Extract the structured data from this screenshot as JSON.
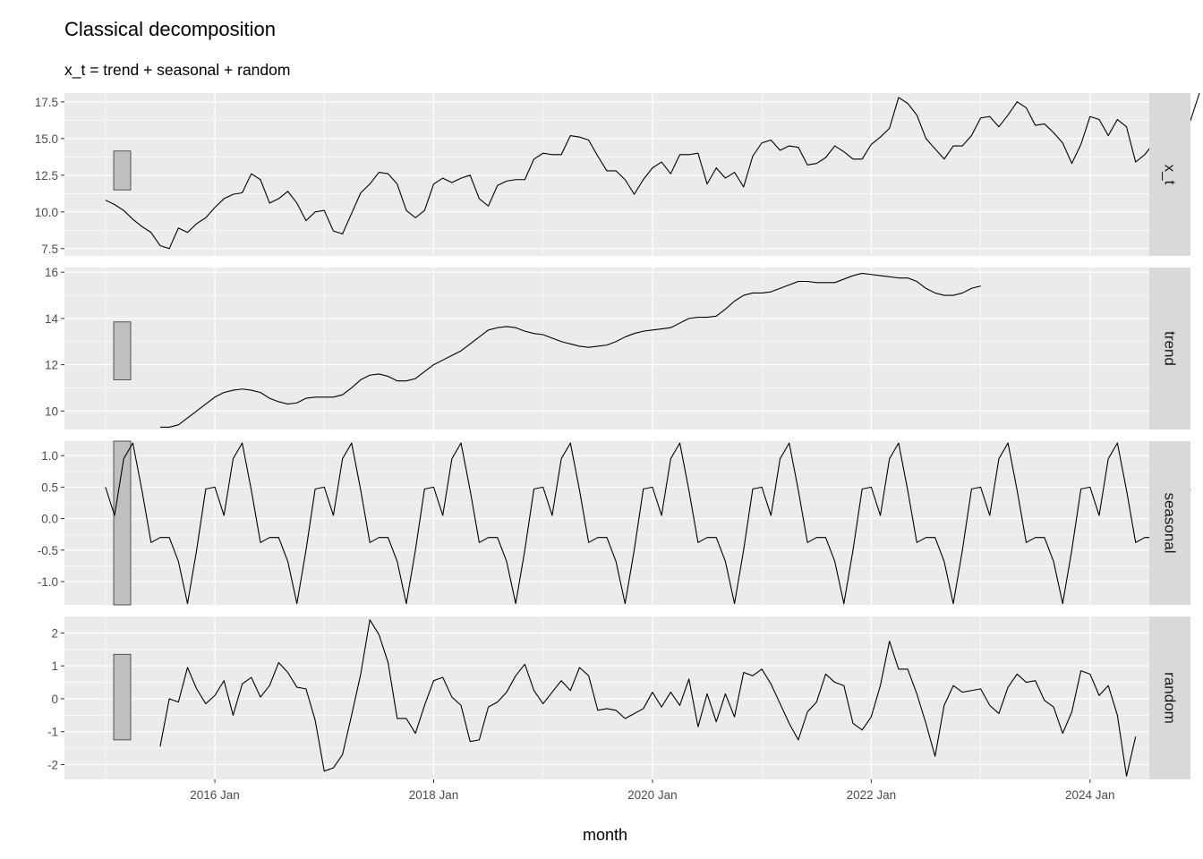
{
  "chart_data": {
    "type": "line",
    "title": "Classical decomposition",
    "subtitle": "x_t = trend + seasonal + random",
    "xlabel": "month",
    "x_start": "2015 Jan",
    "x_end": "2024 Dec",
    "x_ticks": [
      {
        "month_index": 12,
        "label": "2016 Jan"
      },
      {
        "month_index": 36,
        "label": "2018 Jan"
      },
      {
        "month_index": 60,
        "label": "2020 Jan"
      },
      {
        "month_index": 84,
        "label": "2022 Jan"
      },
      {
        "month_index": 108,
        "label": "2024 Jan"
      }
    ],
    "range_bar_color": "#bfbfbf",
    "line_color": "#000000",
    "panels": [
      {
        "name": "x_t",
        "ylim": [
          7.0,
          18.1
        ],
        "y_ticks": [
          7.5,
          10.0,
          12.5,
          15.0,
          17.5
        ],
        "y_tick_labels": [
          "7.5",
          "10.0",
          "12.5",
          "15.0",
          "17.5"
        ],
        "range_bar": [
          11.5,
          14.15
        ],
        "start_index": 0,
        "values": [
          10.8,
          10.5,
          10.1,
          9.5,
          9.0,
          8.6,
          7.7,
          7.5,
          8.9,
          8.6,
          9.2,
          9.6,
          10.3,
          10.9,
          11.2,
          11.3,
          12.6,
          12.2,
          10.6,
          10.9,
          11.4,
          10.6,
          9.4,
          10.0,
          10.1,
          8.7,
          8.5,
          9.9,
          11.3,
          11.9,
          12.7,
          12.6,
          11.9,
          10.1,
          9.6,
          10.1,
          11.9,
          12.3,
          12.0,
          12.3,
          12.5,
          10.9,
          10.4,
          11.8,
          12.1,
          12.2,
          12.2,
          13.6,
          14.0,
          13.9,
          13.9,
          15.2,
          15.1,
          14.9,
          13.8,
          12.8,
          12.8,
          12.2,
          11.2,
          12.2,
          13.0,
          13.4,
          12.6,
          13.9,
          13.9,
          14.0,
          11.9,
          13.0,
          12.3,
          12.7,
          11.7,
          13.8,
          14.7,
          14.9,
          14.2,
          14.5,
          14.4,
          13.2,
          13.3,
          13.7,
          14.5,
          14.1,
          13.6,
          13.6,
          14.6,
          15.1,
          15.7,
          17.8,
          17.4,
          16.6,
          15.0,
          14.3,
          13.6,
          14.5,
          14.5,
          15.2,
          16.4,
          16.5,
          15.8,
          16.6,
          17.5,
          17.1,
          15.9,
          16.0,
          15.4,
          14.7,
          13.3,
          14.6,
          16.5,
          16.3,
          15.2,
          16.3,
          15.8,
          13.4,
          13.9,
          14.7,
          14.9,
          15.2,
          15.8,
          16.2,
          18.1
        ]
      },
      {
        "name": "trend",
        "ylim": [
          9.2,
          16.2
        ],
        "y_ticks": [
          10,
          12,
          14,
          16
        ],
        "y_tick_labels": [
          "10",
          "12",
          "14",
          "16"
        ],
        "range_bar": [
          11.35,
          13.85
        ],
        "start_index": 6,
        "values": [
          9.3,
          9.3,
          9.4,
          9.7,
          10.0,
          10.3,
          10.6,
          10.8,
          10.9,
          10.95,
          10.9,
          10.8,
          10.55,
          10.4,
          10.3,
          10.35,
          10.55,
          10.6,
          10.6,
          10.6,
          10.7,
          11.0,
          11.35,
          11.55,
          11.6,
          11.5,
          11.3,
          11.3,
          11.4,
          11.7,
          12.0,
          12.2,
          12.4,
          12.6,
          12.9,
          13.2,
          13.5,
          13.6,
          13.65,
          13.6,
          13.45,
          13.35,
          13.3,
          13.15,
          13.0,
          12.9,
          12.8,
          12.75,
          12.8,
          12.85,
          13.0,
          13.2,
          13.35,
          13.45,
          13.5,
          13.55,
          13.6,
          13.8,
          14.0,
          14.05,
          14.05,
          14.1,
          14.4,
          14.75,
          15.0,
          15.1,
          15.1,
          15.15,
          15.3,
          15.45,
          15.6,
          15.6,
          15.55,
          15.55,
          15.55,
          15.7,
          15.85,
          15.95,
          15.9,
          15.85,
          15.8,
          15.75,
          15.75,
          15.6,
          15.3,
          15.1,
          15.0,
          15.0,
          15.1,
          15.3,
          15.4
        ]
      },
      {
        "name": "seasonal",
        "ylim": [
          -1.37,
          1.23
        ],
        "y_ticks": [
          -1.0,
          -0.5,
          0.0,
          0.5,
          1.0
        ],
        "y_tick_labels": [
          "-1.0",
          "-0.5",
          "0.0",
          "0.5",
          "1.0"
        ],
        "range_bar": [
          -1.37,
          1.23
        ],
        "start_index": 0,
        "values": [
          0.5,
          0.05,
          0.95,
          1.2,
          0.45,
          -0.38,
          -0.3,
          -0.3,
          -0.68,
          -1.35,
          -0.5,
          0.47,
          0.5,
          0.05,
          0.95,
          1.2,
          0.45,
          -0.38,
          -0.3,
          -0.3,
          -0.68,
          -1.35,
          -0.5,
          0.47,
          0.5,
          0.05,
          0.95,
          1.2,
          0.45,
          -0.38,
          -0.3,
          -0.3,
          -0.68,
          -1.35,
          -0.5,
          0.47,
          0.5,
          0.05,
          0.95,
          1.2,
          0.45,
          -0.38,
          -0.3,
          -0.3,
          -0.68,
          -1.35,
          -0.5,
          0.47,
          0.5,
          0.05,
          0.95,
          1.2,
          0.45,
          -0.38,
          -0.3,
          -0.3,
          -0.68,
          -1.35,
          -0.5,
          0.47,
          0.5,
          0.05,
          0.95,
          1.2,
          0.45,
          -0.38,
          -0.3,
          -0.3,
          -0.68,
          -1.35,
          -0.5,
          0.47,
          0.5,
          0.05,
          0.95,
          1.2,
          0.45,
          -0.38,
          -0.3,
          -0.3,
          -0.68,
          -1.35,
          -0.5,
          0.47,
          0.5,
          0.05,
          0.95,
          1.2,
          0.45,
          -0.38,
          -0.3,
          -0.3,
          -0.68,
          -1.35,
          -0.5,
          0.47,
          0.5,
          0.05,
          0.95,
          1.2,
          0.45,
          -0.38,
          -0.3,
          -0.3,
          -0.68,
          -1.35,
          -0.5,
          0.47,
          0.5,
          0.05,
          0.95,
          1.2,
          0.45,
          -0.38,
          -0.3,
          -0.3,
          -0.68,
          -1.35,
          -0.5,
          0.47
        ]
      },
      {
        "name": "random",
        "ylim": [
          -2.45,
          2.5
        ],
        "y_ticks": [
          -2,
          -1,
          0,
          1,
          2
        ],
        "y_tick_labels": [
          "-2",
          "-1",
          "0",
          "1",
          "2"
        ],
        "range_bar": [
          -1.25,
          1.35
        ],
        "start_index": 6,
        "values": [
          -1.45,
          0.0,
          -0.1,
          0.95,
          0.3,
          -0.15,
          0.1,
          0.55,
          -0.5,
          0.45,
          0.65,
          0.05,
          0.4,
          1.1,
          0.8,
          0.35,
          0.3,
          -0.65,
          -2.2,
          -2.1,
          -1.7,
          -0.5,
          0.75,
          2.4,
          1.95,
          1.1,
          -0.6,
          -0.6,
          -1.05,
          -0.2,
          0.55,
          0.65,
          0.05,
          -0.2,
          -1.3,
          -1.25,
          -0.25,
          -0.1,
          0.2,
          0.7,
          1.05,
          0.25,
          -0.15,
          0.2,
          0.55,
          0.25,
          0.95,
          0.7,
          -0.35,
          -0.3,
          -0.35,
          -0.6,
          -0.45,
          -0.3,
          0.2,
          -0.25,
          0.2,
          -0.2,
          0.6,
          -0.85,
          0.15,
          -0.7,
          0.15,
          -0.55,
          0.8,
          0.7,
          0.9,
          0.45,
          -0.15,
          -0.75,
          -1.25,
          -0.4,
          -0.1,
          0.75,
          0.5,
          0.4,
          -0.75,
          -0.95,
          -0.55,
          0.4,
          1.75,
          0.9,
          0.9,
          0.15,
          -0.75,
          -1.75,
          -0.2,
          0.4,
          0.2,
          0.25,
          0.3,
          -0.2,
          -0.45,
          0.35,
          0.75,
          0.5,
          0.55,
          -0.05,
          -0.25,
          -1.05,
          -0.4,
          0.85,
          0.75,
          0.1,
          0.4,
          -0.5,
          -2.35,
          -1.15
        ]
      }
    ]
  }
}
